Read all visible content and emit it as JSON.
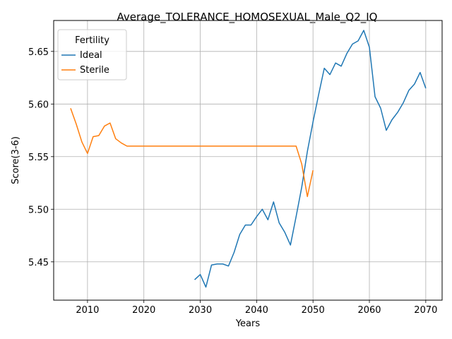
{
  "chart_data": {
    "type": "line",
    "title": "Average_TOLERANCE_HOMOSEXUAL_Male_Q2_IQ",
    "xlabel": "Years",
    "ylabel": "Score(3-6)",
    "xlim": [
      2004.0,
      2072.9
    ],
    "ylim": [
      5.4136,
      5.6794
    ],
    "xticks": [
      2010,
      2020,
      2030,
      2040,
      2050,
      2060,
      2070
    ],
    "yticks": [
      5.45,
      5.5,
      5.55,
      5.6,
      5.65
    ],
    "ytick_labels": [
      "5.45",
      "5.50",
      "5.55",
      "5.60",
      "5.65"
    ],
    "grid": true,
    "legend": {
      "title": "Fertility",
      "position": "upper-left"
    },
    "series": [
      {
        "name": "Ideal",
        "color": "#1f77b4",
        "x": [
          2029,
          2030,
          2031,
          2032,
          2033,
          2034,
          2035,
          2036,
          2037,
          2038,
          2039,
          2040,
          2041,
          2042,
          2043,
          2044,
          2045,
          2046,
          2047,
          2048,
          2049,
          2050,
          2051,
          2052,
          2053,
          2054,
          2055,
          2056,
          2057,
          2058,
          2059,
          2060,
          2061,
          2062,
          2063,
          2064,
          2065,
          2066,
          2067,
          2068,
          2069,
          2070
        ],
        "y": [
          5.433,
          5.438,
          5.426,
          5.447,
          5.448,
          5.448,
          5.446,
          5.459,
          5.476,
          5.485,
          5.485,
          5.493,
          5.5,
          5.49,
          5.507,
          5.487,
          5.478,
          5.466,
          5.493,
          5.521,
          5.555,
          5.583,
          5.609,
          5.634,
          5.628,
          5.639,
          5.636,
          5.648,
          5.657,
          5.66,
          5.67,
          5.654,
          5.607,
          5.596,
          5.575,
          5.585,
          5.592,
          5.601,
          5.613,
          5.619,
          5.63,
          5.615
        ]
      },
      {
        "name": "Sterile",
        "color": "#ff7f0e",
        "x": [
          2007,
          2008,
          2009,
          2010,
          2011,
          2012,
          2013,
          2014,
          2015,
          2016,
          2017,
          2018,
          2019,
          2020,
          2021,
          2022,
          2023,
          2024,
          2025,
          2026,
          2027,
          2028,
          2029,
          2030,
          2031,
          2032,
          2033,
          2034,
          2035,
          2036,
          2037,
          2038,
          2039,
          2040,
          2041,
          2042,
          2043,
          2044,
          2045,
          2046,
          2047,
          2048,
          2049,
          2050
        ],
        "y": [
          5.596,
          5.581,
          5.564,
          5.553,
          5.569,
          5.57,
          5.579,
          5.582,
          5.567,
          5.563,
          5.56,
          5.56,
          5.56,
          5.56,
          5.56,
          5.56,
          5.56,
          5.56,
          5.56,
          5.56,
          5.56,
          5.56,
          5.56,
          5.56,
          5.56,
          5.56,
          5.56,
          5.56,
          5.56,
          5.56,
          5.56,
          5.56,
          5.56,
          5.56,
          5.56,
          5.56,
          5.56,
          5.56,
          5.56,
          5.56,
          5.56,
          5.543,
          5.512,
          5.537
        ]
      }
    ]
  }
}
